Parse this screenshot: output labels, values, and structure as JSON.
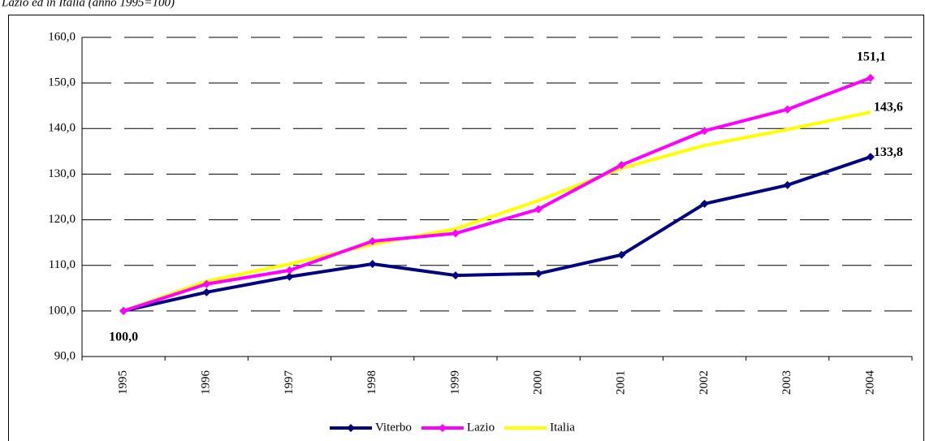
{
  "chart_data": {
    "type": "line",
    "subtitle": "Lazio ed in Italia (anno 1995=100)",
    "categories": [
      "1995",
      "1996",
      "1997",
      "1998",
      "1999",
      "2000",
      "2001",
      "2002",
      "2003",
      "2004"
    ],
    "series": [
      {
        "name": "Viterbo",
        "color": "#000080",
        "marker": "diamond",
        "values": [
          100.0,
          104.1,
          107.5,
          110.3,
          107.8,
          108.2,
          112.3,
          123.5,
          127.6,
          133.8
        ],
        "value_labels": [
          "100,0",
          null,
          null,
          null,
          null,
          null,
          null,
          null,
          null,
          "133,8"
        ]
      },
      {
        "name": "Lazio",
        "color": "#ff00ff",
        "marker": "diamond",
        "values": [
          100.0,
          105.9,
          108.9,
          115.3,
          117.0,
          122.3,
          132.0,
          139.5,
          144.2,
          151.1
        ],
        "value_labels": [
          null,
          null,
          null,
          null,
          null,
          null,
          null,
          null,
          null,
          "151,1"
        ]
      },
      {
        "name": "Italia",
        "color": "#ffff00",
        "values": [
          100.0,
          106.5,
          110.3,
          114.6,
          118.0,
          124.2,
          131.3,
          136.3,
          139.8,
          143.6
        ],
        "value_labels": [
          null,
          null,
          null,
          null,
          null,
          null,
          null,
          null,
          null,
          "143,6"
        ]
      }
    ],
    "ylim": [
      90,
      160
    ],
    "yticks": [
      {
        "value": 90,
        "label": "90,0"
      },
      {
        "value": 100,
        "label": "100,0"
      },
      {
        "value": 110,
        "label": "110,0"
      },
      {
        "value": 120,
        "label": "120,0"
      },
      {
        "value": 130,
        "label": "130,0"
      },
      {
        "value": 140,
        "label": "140,0"
      },
      {
        "value": 150,
        "label": "150,0"
      },
      {
        "value": 160,
        "label": "160,0"
      }
    ],
    "grid": true,
    "legend": "bottom"
  }
}
